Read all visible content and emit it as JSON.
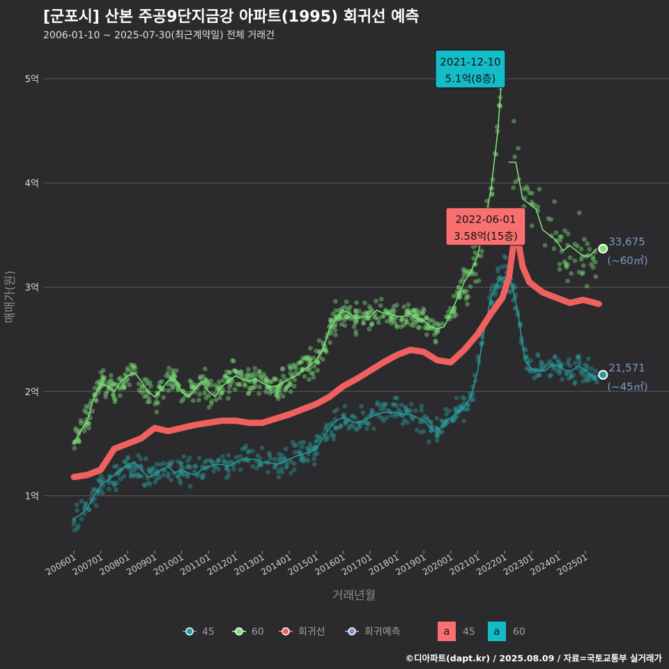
{
  "title": "[군포시] 산본 주공9단지금강 아파트(1995) 회귀선 예측",
  "subtitle": "2006-01-10 ~ 2025-07-30(최근계약일) 전체 거래건",
  "footer": "©디아파트(dapt.kr) / 2025.08.09 / 자료=국토교통부 실거래가",
  "colors": {
    "background": "#2b2b2d",
    "grid": "#5a5a5a",
    "series_45": "#2a9a9a",
    "series_60": "#7fe07a",
    "regression": "#f0605e",
    "forecast": "#7f98c0",
    "label_teal": "#14bcc8",
    "label_red": "#f87070"
  },
  "chart_data": {
    "type": "scatter",
    "title": "[군포시] 산본 주공9단지금강 아파트(1995) 회귀선 예측",
    "xlabel": "거래년월",
    "ylabel": "매매가(원)",
    "x_range": [
      "2005-11",
      "2025-09"
    ],
    "ylim": [
      0.5,
      5.3
    ],
    "grid": true,
    "legend_position": "bottom",
    "x_ticks": [
      "200601",
      "200701",
      "200801",
      "200901",
      "201001",
      "201101",
      "201201",
      "201301",
      "201401",
      "201501",
      "201601",
      "201701",
      "201801",
      "201901",
      "202001",
      "202101",
      "202201",
      "202301",
      "202401",
      "202501"
    ],
    "y_ticks": [
      {
        "value": 1,
        "label": "1억"
      },
      {
        "value": 2,
        "label": "2억"
      },
      {
        "value": 3,
        "label": "3억"
      },
      {
        "value": 4,
        "label": "4억"
      },
      {
        "value": 5,
        "label": "5억"
      }
    ],
    "series": [
      {
        "name": "60",
        "kind": "trend",
        "x": [
          "2006-01",
          "2006-04",
          "2006-07",
          "2006-10",
          "2007-01",
          "2007-04",
          "2007-07",
          "2007-10",
          "2008-01",
          "2008-04",
          "2008-07",
          "2008-10",
          "2009-01",
          "2009-04",
          "2009-07",
          "2009-10",
          "2010-01",
          "2010-04",
          "2010-07",
          "2010-10",
          "2011-01",
          "2011-04",
          "2011-07",
          "2011-10",
          "2012-01",
          "2012-04",
          "2012-07",
          "2012-10",
          "2013-01",
          "2013-04",
          "2013-07",
          "2013-10",
          "2014-01",
          "2014-04",
          "2014-07",
          "2014-10",
          "2015-01",
          "2015-04",
          "2015-07",
          "2015-10",
          "2016-01",
          "2016-04",
          "2016-07",
          "2016-10",
          "2017-01",
          "2017-04",
          "2017-07",
          "2017-10",
          "2018-01",
          "2018-04",
          "2018-07",
          "2018-10",
          "2019-01",
          "2019-04",
          "2019-07",
          "2019-10",
          "2020-01",
          "2020-04",
          "2020-07",
          "2020-10",
          "2021-01",
          "2021-04",
          "2021-07",
          "2021-10",
          "2021-12"
        ],
        "values": [
          1.5,
          1.62,
          1.72,
          1.95,
          2.08,
          2.05,
          2.0,
          2.1,
          2.15,
          2.18,
          2.1,
          2.0,
          1.95,
          2.02,
          2.1,
          2.12,
          2.0,
          1.95,
          2.02,
          2.1,
          2.0,
          1.95,
          2.05,
          2.1,
          2.15,
          2.12,
          2.1,
          2.12,
          2.08,
          2.05,
          2.05,
          2.08,
          2.12,
          2.15,
          2.2,
          2.25,
          2.3,
          2.4,
          2.6,
          2.7,
          2.78,
          2.75,
          2.7,
          2.72,
          2.72,
          2.78,
          2.75,
          2.75,
          2.72,
          2.72,
          2.75,
          2.7,
          2.68,
          2.62,
          2.6,
          2.62,
          2.75,
          2.9,
          3.05,
          3.15,
          3.3,
          3.6,
          3.95,
          4.5,
          5.1
        ]
      },
      {
        "name": "60",
        "kind": "trend-after",
        "x": [
          "2022-03",
          "2022-06",
          "2022-09",
          "2022-12",
          "2023-03",
          "2023-06",
          "2023-09",
          "2023-12",
          "2024-03",
          "2024-06",
          "2024-09",
          "2024-12",
          "2025-03",
          "2025-06"
        ],
        "values": [
          4.2,
          4.2,
          3.85,
          3.8,
          3.75,
          3.55,
          3.5,
          3.45,
          3.35,
          3.4,
          3.35,
          3.3,
          3.3,
          3.37
        ]
      },
      {
        "name": "45",
        "kind": "trend",
        "x": [
          "2006-01",
          "2006-04",
          "2006-07",
          "2006-10",
          "2007-01",
          "2007-04",
          "2007-07",
          "2007-10",
          "2008-01",
          "2008-04",
          "2008-07",
          "2008-10",
          "2009-01",
          "2009-04",
          "2009-07",
          "2009-10",
          "2010-01",
          "2010-04",
          "2010-07",
          "2010-10",
          "2011-01",
          "2011-04",
          "2011-07",
          "2011-10",
          "2012-01",
          "2012-04",
          "2012-07",
          "2012-10",
          "2013-01",
          "2013-04",
          "2013-07",
          "2013-10",
          "2014-01",
          "2014-04",
          "2014-07",
          "2014-10",
          "2015-01",
          "2015-04",
          "2015-07",
          "2015-10",
          "2016-01",
          "2016-04",
          "2016-07",
          "2016-10",
          "2017-01",
          "2017-04",
          "2017-07",
          "2017-10",
          "2018-01",
          "2018-04",
          "2018-07",
          "2018-10",
          "2019-01",
          "2019-04",
          "2019-07",
          "2019-10",
          "2020-01",
          "2020-04",
          "2020-07",
          "2020-10",
          "2021-01",
          "2021-04",
          "2021-07",
          "2021-10",
          "2022-01",
          "2022-04",
          "2022-07",
          "2022-10",
          "2023-01",
          "2023-04",
          "2023-07",
          "2023-10",
          "2024-01",
          "2024-04",
          "2024-07",
          "2024-10",
          "2025-01",
          "2025-04",
          "2025-07"
        ],
        "values": [
          0.78,
          0.82,
          0.88,
          1.0,
          1.1,
          1.15,
          1.2,
          1.25,
          1.3,
          1.32,
          1.25,
          1.18,
          1.2,
          1.25,
          1.28,
          1.22,
          1.25,
          1.22,
          1.2,
          1.25,
          1.28,
          1.3,
          1.3,
          1.28,
          1.32,
          1.35,
          1.35,
          1.35,
          1.32,
          1.32,
          1.3,
          1.32,
          1.35,
          1.38,
          1.4,
          1.42,
          1.45,
          1.55,
          1.65,
          1.72,
          1.75,
          1.72,
          1.7,
          1.72,
          1.75,
          1.78,
          1.8,
          1.8,
          1.8,
          1.78,
          1.78,
          1.75,
          1.72,
          1.65,
          1.6,
          1.7,
          1.75,
          1.8,
          1.85,
          1.95,
          2.2,
          2.6,
          2.9,
          3.05,
          3.1,
          3.05,
          2.75,
          2.3,
          2.22,
          2.2,
          2.2,
          2.25,
          2.25,
          2.2,
          2.2,
          2.25,
          2.2,
          2.15,
          2.15
        ]
      },
      {
        "name": "회귀선",
        "kind": "regression",
        "x": [
          "2006-01",
          "2006-07",
          "2007-01",
          "2007-07",
          "2008-01",
          "2008-07",
          "2009-01",
          "2009-07",
          "2010-01",
          "2010-07",
          "2011-01",
          "2011-07",
          "2012-01",
          "2012-07",
          "2013-01",
          "2013-07",
          "2014-01",
          "2014-07",
          "2015-01",
          "2015-07",
          "2016-01",
          "2016-07",
          "2017-01",
          "2017-07",
          "2018-01",
          "2018-07",
          "2019-01",
          "2019-07",
          "2020-01",
          "2020-07",
          "2021-01",
          "2021-07",
          "2021-12",
          "2022-03",
          "2022-06",
          "2022-09",
          "2022-12",
          "2023-06",
          "2023-12",
          "2024-06",
          "2024-12",
          "2025-07"
        ],
        "values": [
          1.18,
          1.2,
          1.25,
          1.45,
          1.5,
          1.55,
          1.65,
          1.62,
          1.65,
          1.68,
          1.7,
          1.72,
          1.72,
          1.7,
          1.7,
          1.74,
          1.78,
          1.83,
          1.88,
          1.95,
          2.05,
          2.12,
          2.2,
          2.28,
          2.35,
          2.4,
          2.38,
          2.3,
          2.28,
          2.4,
          2.55,
          2.75,
          2.9,
          3.1,
          3.58,
          3.2,
          3.05,
          2.95,
          2.9,
          2.85,
          2.88,
          2.84
        ]
      }
    ],
    "markers": [
      {
        "x": "2006-03",
        "y": 1.0,
        "series": "45",
        "label": "",
        "count": 60
      },
      {
        "x": "2025-07",
        "y": 3.37,
        "series": "60",
        "label": "33,675",
        "sublabel": "(~60㎡)"
      },
      {
        "x": "2025-07",
        "y": 2.16,
        "series": "45",
        "label": "21,571",
        "sublabel": "(~45㎡)"
      }
    ],
    "annotations": [
      {
        "x": "2021-12",
        "y": 5.1,
        "date": "2021-12-10",
        "text": "5.1억(8층)",
        "color": "teal"
      },
      {
        "x": "2022-06",
        "y": 3.58,
        "date": "2022-06-01",
        "text": "3.58억(15층)",
        "color": "red"
      }
    ],
    "legend": [
      {
        "label": "45",
        "kind": "point-line",
        "color": "#2a9a9a"
      },
      {
        "label": "60",
        "kind": "point-line",
        "color": "#7fe07a"
      },
      {
        "label": "회귀선",
        "kind": "point-line",
        "color": "#f0605e"
      },
      {
        "label": "회귀예측",
        "kind": "point-line",
        "color": "#7f98c0"
      },
      {
        "label": "45",
        "kind": "text-box",
        "glyph": "a",
        "color": "#f87070"
      },
      {
        "label": "60",
        "kind": "text-box",
        "glyph": "a",
        "color": "#14bcc8"
      }
    ]
  }
}
